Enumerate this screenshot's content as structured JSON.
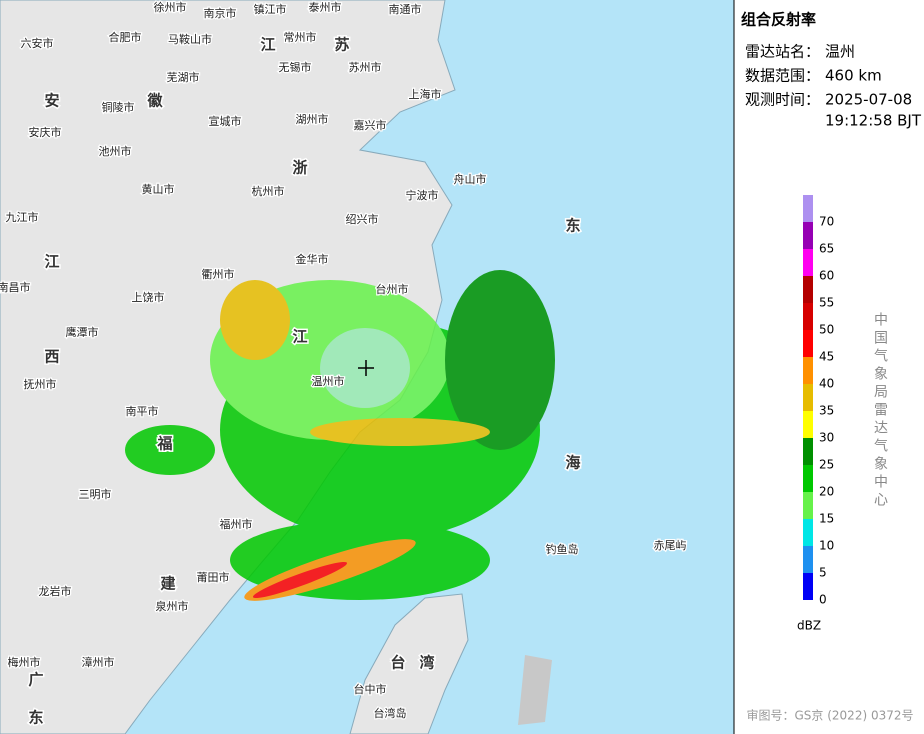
{
  "panel": {
    "title": "组合反射率",
    "station_label": "雷达站名：",
    "station": "温州",
    "range_label": "数据范围：",
    "range": "460 km",
    "time_label": "观测时间：",
    "date": "2025-07-08",
    "time": "19:12:58 BJT"
  },
  "legend": {
    "unit": "dBZ",
    "credit": "中国气象局雷达气象中心",
    "levels": [
      {
        "value": 0,
        "color": "#0000f6"
      },
      {
        "value": 5,
        "color": "#1e90f0"
      },
      {
        "value": 10,
        "color": "#00e6e6"
      },
      {
        "value": 15,
        "color": "#66f24a"
      },
      {
        "value": 20,
        "color": "#00c800"
      },
      {
        "value": 25,
        "color": "#009000"
      },
      {
        "value": 30,
        "color": "#ffff00"
      },
      {
        "value": 35,
        "color": "#e6bc00"
      },
      {
        "value": 40,
        "color": "#ff9000"
      },
      {
        "value": 45,
        "color": "#ff0000"
      },
      {
        "value": 50,
        "color": "#d60000"
      },
      {
        "value": 55,
        "color": "#b40000"
      },
      {
        "value": 60,
        "color": "#ff00f0"
      },
      {
        "value": 65,
        "color": "#9600b4"
      },
      {
        "value": 70,
        "color": "#ad90f0"
      }
    ]
  },
  "approval": "审图号：GS京 (2022) 0372号",
  "map": {
    "cities": [
      "徐州市",
      "南京市",
      "镇江市",
      "泰州市",
      "南通市",
      "六安市",
      "合肥市",
      "马鞍山市",
      "常州市",
      "无锡市",
      "苏州市",
      "芜湖市",
      "上海市",
      "铜陵市",
      "宣城市",
      "湖州市",
      "嘉兴市",
      "安庆市",
      "池州市",
      "舟山市",
      "黄山市",
      "杭州市",
      "宁波市",
      "九江市",
      "绍兴市",
      "衢州市",
      "金华市",
      "南昌市",
      "上饶市",
      "鹰潭市",
      "台州市",
      "抚州市",
      "温州市",
      "南平市",
      "三明市",
      "福州市",
      "龙岩市",
      "莆田市",
      "泉州市",
      "漳州市",
      "梅州市",
      "台中市",
      "台湾岛",
      "钓鱼岛",
      "赤尾屿"
    ],
    "regions": [
      "安",
      "徽",
      "江",
      "苏",
      "浙",
      "江",
      "江",
      "西",
      "福",
      "建",
      "台",
      "湾",
      "东",
      "海",
      "广",
      "东"
    ]
  }
}
